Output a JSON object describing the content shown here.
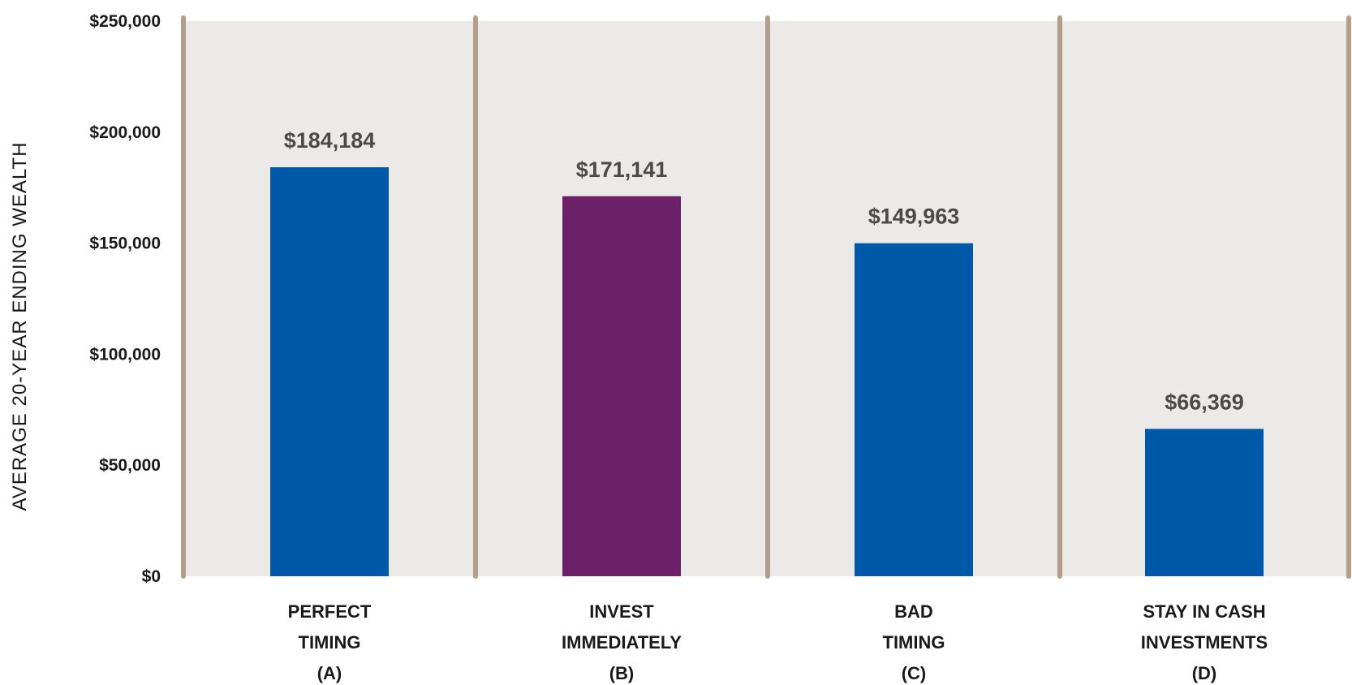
{
  "chart_data": {
    "type": "bar",
    "title": "",
    "xlabel": "",
    "ylabel": "AVERAGE 20-YEAR ENDING WEALTH",
    "ylim": [
      0,
      250000
    ],
    "yticks": [
      {
        "value": 0,
        "label": "$0"
      },
      {
        "value": 50000,
        "label": "$50,000"
      },
      {
        "value": 100000,
        "label": "$100,000"
      },
      {
        "value": 150000,
        "label": "$150,000"
      },
      {
        "value": 200000,
        "label": "$200,000"
      },
      {
        "value": 250000,
        "label": "$250,000"
      }
    ],
    "categories": [
      {
        "lines": [
          "PERFECT",
          "TIMING",
          "(A)"
        ]
      },
      {
        "lines": [
          "INVEST",
          "IMMEDIATELY",
          "(B)"
        ]
      },
      {
        "lines": [
          "BAD",
          "TIMING",
          "(C)"
        ]
      },
      {
        "lines": [
          "STAY IN CASH",
          "INVESTMENTS",
          "(D)"
        ]
      }
    ],
    "values": [
      184184,
      171141,
      149963,
      66369
    ],
    "value_labels": [
      "$184,184",
      "$171,141",
      "$149,963",
      "$66,369"
    ],
    "bar_colors": [
      "#0059A8",
      "#6B2068",
      "#0059A8",
      "#0059A8"
    ],
    "panel_background": "#EBEAE8",
    "divider_color": "#B39E8A",
    "grid": false,
    "legend": "none"
  }
}
